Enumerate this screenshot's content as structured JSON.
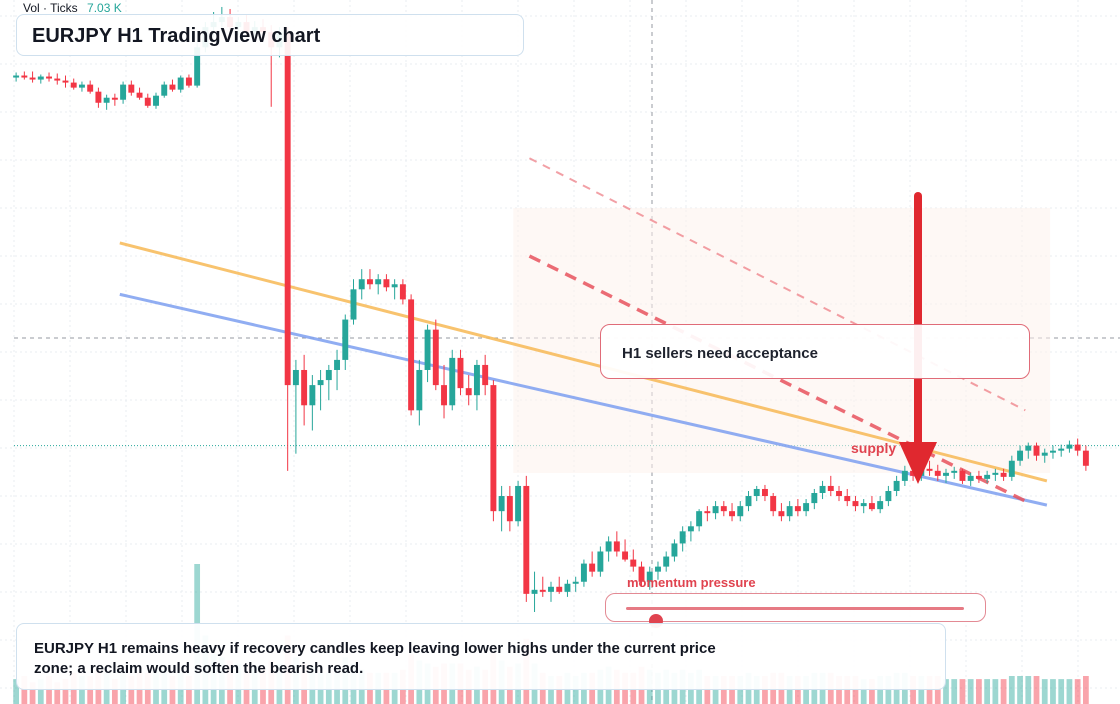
{
  "header": {
    "volume_label": "Vol · Ticks",
    "volume_value": "7.03 K",
    "title": "EURJPY H1 TradingView chart"
  },
  "annotations": {
    "callout": "H1 sellers need acceptance",
    "supply_label": "supply",
    "momentum_label": "momentum pressure",
    "momentum_level": 0.09,
    "note": "EURJPY H1 remains heavy if recovery candles keep leaving lower highs under the current price zone; a reclaim would soften the bearish read."
  },
  "colors": {
    "up": "#26a69a",
    "down": "#f23645",
    "trendline_orange": "#f7b955",
    "trendline_blue": "#7d9ff0",
    "channel_red": "#e8525d",
    "arrow": "#e0282f",
    "grid": "#e9ecf0"
  },
  "icons": [
    "down-arrow-icon"
  ],
  "chart_data": {
    "type": "candlestick",
    "symbol": "EURJPY",
    "timeframe": "H1",
    "title": "EURJPY H1 TradingView chart",
    "candles": [
      [
        160.0,
        160.05,
        159.96,
        160.02,
        0.8
      ],
      [
        160.02,
        160.06,
        159.98,
        160.0,
        0.9
      ],
      [
        160.0,
        160.06,
        159.95,
        159.98,
        0.7
      ],
      [
        159.98,
        160.03,
        159.94,
        160.01,
        0.8
      ],
      [
        160.01,
        160.05,
        159.96,
        159.99,
        0.9
      ],
      [
        159.99,
        160.04,
        159.93,
        159.97,
        0.7
      ],
      [
        159.97,
        160.02,
        159.9,
        159.95,
        0.8
      ],
      [
        159.95,
        159.99,
        159.88,
        159.9,
        1.0
      ],
      [
        159.9,
        159.96,
        159.86,
        159.93,
        0.9
      ],
      [
        159.93,
        159.97,
        159.84,
        159.86,
        0.9
      ],
      [
        159.86,
        159.9,
        159.7,
        159.75,
        1.1
      ],
      [
        159.75,
        159.83,
        159.68,
        159.8,
        1.0
      ],
      [
        159.8,
        159.84,
        159.72,
        159.78,
        0.8
      ],
      [
        159.78,
        159.96,
        159.74,
        159.93,
        1.1
      ],
      [
        159.93,
        159.97,
        159.82,
        159.85,
        0.9
      ],
      [
        159.85,
        159.9,
        159.78,
        159.8,
        1.0
      ],
      [
        159.8,
        159.84,
        159.7,
        159.72,
        1.0
      ],
      [
        159.72,
        159.85,
        159.69,
        159.82,
        1.1
      ],
      [
        159.82,
        159.96,
        159.8,
        159.93,
        1.1
      ],
      [
        159.93,
        159.98,
        159.86,
        159.88,
        0.9
      ],
      [
        159.88,
        160.02,
        159.85,
        160.0,
        1.0
      ],
      [
        160.0,
        160.03,
        159.9,
        159.92,
        0.9
      ],
      [
        159.92,
        160.35,
        159.9,
        160.3,
        4.5
      ],
      [
        160.3,
        160.55,
        160.25,
        160.5,
        2.2
      ],
      [
        160.5,
        160.65,
        160.4,
        160.55,
        1.6
      ],
      [
        160.55,
        160.7,
        160.45,
        160.6,
        1.5
      ],
      [
        160.6,
        160.68,
        160.46,
        160.5,
        1.4
      ],
      [
        160.5,
        160.6,
        160.42,
        160.55,
        1.3
      ],
      [
        160.55,
        160.62,
        160.4,
        160.45,
        1.3
      ],
      [
        160.45,
        160.56,
        160.38,
        160.5,
        1.2
      ],
      [
        160.5,
        160.58,
        160.4,
        160.45,
        1.2
      ],
      [
        160.45,
        160.52,
        159.71,
        160.3,
        1.4
      ],
      [
        160.3,
        160.5,
        160.2,
        160.45,
        1.3
      ],
      [
        160.45,
        160.5,
        156.1,
        156.95,
        2.2
      ],
      [
        156.95,
        157.2,
        156.27,
        157.1,
        1.5
      ],
      [
        157.1,
        157.25,
        156.55,
        156.75,
        1.3
      ],
      [
        156.75,
        157.05,
        156.5,
        156.95,
        1.2
      ],
      [
        156.95,
        157.1,
        156.7,
        157.0,
        1.0
      ],
      [
        157.0,
        157.15,
        156.8,
        157.1,
        1.0
      ],
      [
        157.1,
        157.3,
        156.9,
        157.2,
        1.1
      ],
      [
        157.2,
        157.65,
        157.1,
        157.6,
        1.5
      ],
      [
        157.6,
        158.0,
        157.55,
        157.9,
        1.3
      ],
      [
        157.9,
        158.1,
        157.8,
        158.0,
        1.1
      ],
      [
        158.0,
        158.1,
        157.9,
        157.95,
        1.0
      ],
      [
        157.95,
        158.05,
        157.85,
        158.0,
        1.0
      ],
      [
        158.0,
        158.05,
        157.88,
        157.92,
        1.0
      ],
      [
        157.92,
        158.0,
        157.8,
        157.95,
        1.0
      ],
      [
        157.95,
        158.0,
        157.75,
        157.8,
        1.1
      ],
      [
        157.8,
        157.85,
        156.65,
        156.7,
        1.6
      ],
      [
        156.7,
        157.2,
        156.55,
        157.1,
        1.4
      ],
      [
        157.1,
        157.55,
        156.98,
        157.5,
        1.3
      ],
      [
        157.5,
        157.6,
        156.9,
        156.95,
        1.2
      ],
      [
        156.95,
        157.15,
        156.62,
        156.75,
        1.3
      ],
      [
        156.75,
        157.3,
        156.7,
        157.22,
        1.3
      ],
      [
        157.22,
        157.3,
        156.85,
        156.92,
        1.3
      ],
      [
        156.92,
        157.05,
        156.75,
        156.85,
        1.1
      ],
      [
        156.85,
        157.2,
        156.7,
        157.15,
        1.2
      ],
      [
        157.15,
        157.25,
        156.85,
        156.95,
        1.1
      ],
      [
        156.95,
        157.0,
        155.6,
        155.7,
        1.7
      ],
      [
        155.7,
        155.95,
        155.5,
        155.85,
        1.4
      ],
      [
        155.85,
        155.95,
        155.5,
        155.6,
        1.2
      ],
      [
        155.6,
        156.0,
        155.55,
        155.95,
        1.3
      ],
      [
        155.95,
        156.05,
        154.8,
        154.88,
        2.1
      ],
      [
        154.88,
        155.1,
        154.7,
        154.92,
        1.3
      ],
      [
        154.92,
        155.05,
        154.85,
        154.9,
        1.0
      ],
      [
        154.9,
        155.0,
        154.8,
        154.95,
        0.9
      ],
      [
        154.95,
        155.05,
        154.88,
        154.9,
        0.9
      ],
      [
        154.9,
        155.02,
        154.85,
        154.98,
        1.0
      ],
      [
        154.98,
        155.05,
        154.9,
        155.0,
        0.9
      ],
      [
        155.0,
        155.22,
        154.95,
        155.18,
        1.0
      ],
      [
        155.18,
        155.3,
        155.05,
        155.1,
        1.0
      ],
      [
        155.1,
        155.35,
        155.05,
        155.3,
        1.1
      ],
      [
        155.3,
        155.45,
        155.2,
        155.4,
        1.2
      ],
      [
        155.4,
        155.5,
        155.25,
        155.3,
        1.1
      ],
      [
        155.3,
        155.42,
        155.2,
        155.22,
        1.0
      ],
      [
        155.22,
        155.32,
        155.1,
        155.15,
        1.0
      ],
      [
        155.15,
        155.2,
        154.95,
        155.0,
        1.2
      ],
      [
        155.0,
        155.15,
        154.92,
        155.1,
        1.1
      ],
      [
        155.1,
        155.2,
        155.02,
        155.15,
        1.0
      ],
      [
        155.15,
        155.3,
        155.1,
        155.25,
        1.1
      ],
      [
        155.25,
        155.42,
        155.2,
        155.38,
        1.0
      ],
      [
        155.38,
        155.55,
        155.3,
        155.5,
        1.1
      ],
      [
        155.5,
        155.6,
        155.4,
        155.55,
        1.0
      ],
      [
        155.55,
        155.72,
        155.5,
        155.7,
        1.1
      ],
      [
        155.7,
        155.75,
        155.6,
        155.68,
        0.9
      ],
      [
        155.68,
        155.8,
        155.62,
        155.75,
        0.9
      ],
      [
        155.75,
        155.8,
        155.65,
        155.7,
        0.9
      ],
      [
        155.7,
        155.78,
        155.6,
        155.65,
        0.9
      ],
      [
        155.65,
        155.8,
        155.6,
        155.75,
        0.9
      ],
      [
        155.75,
        155.9,
        155.7,
        155.85,
        1.0
      ],
      [
        155.85,
        155.95,
        155.8,
        155.92,
        0.9
      ],
      [
        155.92,
        155.96,
        155.8,
        155.85,
        0.9
      ],
      [
        155.85,
        155.88,
        155.65,
        155.7,
        1.0
      ],
      [
        155.7,
        155.78,
        155.6,
        155.65,
        1.0
      ],
      [
        155.65,
        155.8,
        155.6,
        155.75,
        0.9
      ],
      [
        155.75,
        155.82,
        155.65,
        155.7,
        0.9
      ],
      [
        155.7,
        155.82,
        155.65,
        155.78,
        0.9
      ],
      [
        155.78,
        155.92,
        155.72,
        155.88,
        1.0
      ],
      [
        155.88,
        156.0,
        155.82,
        155.95,
        1.0
      ],
      [
        155.95,
        156.05,
        155.85,
        155.9,
        1.0
      ],
      [
        155.9,
        155.95,
        155.8,
        155.85,
        0.9
      ],
      [
        155.85,
        155.92,
        155.75,
        155.8,
        0.9
      ],
      [
        155.8,
        155.85,
        155.7,
        155.75,
        0.9
      ],
      [
        155.75,
        155.82,
        155.68,
        155.78,
        0.8
      ],
      [
        155.78,
        155.85,
        155.7,
        155.72,
        0.8
      ],
      [
        155.72,
        155.85,
        155.68,
        155.8,
        0.9
      ],
      [
        155.8,
        155.95,
        155.75,
        155.9,
        0.9
      ],
      [
        155.9,
        156.05,
        155.85,
        156.0,
        1.0
      ],
      [
        156.0,
        156.15,
        155.95,
        156.1,
        1.0
      ],
      [
        156.1,
        156.18,
        156.0,
        156.05,
        0.9
      ],
      [
        156.05,
        156.15,
        156.0,
        156.12,
        0.9
      ],
      [
        156.12,
        156.2,
        156.05,
        156.1,
        0.9
      ],
      [
        156.1,
        156.16,
        156.0,
        156.05,
        0.9
      ],
      [
        156.05,
        156.12,
        155.98,
        156.08,
        0.8
      ],
      [
        156.08,
        156.14,
        156.02,
        156.1,
        0.8
      ],
      [
        156.1,
        156.12,
        155.97,
        156.0,
        0.8
      ],
      [
        156.0,
        156.08,
        155.95,
        156.05,
        0.8
      ],
      [
        156.05,
        156.1,
        155.98,
        156.02,
        0.8
      ],
      [
        156.02,
        156.1,
        155.98,
        156.06,
        0.8
      ],
      [
        156.06,
        156.12,
        156.0,
        156.08,
        0.8
      ],
      [
        156.08,
        156.12,
        156.0,
        156.04,
        0.8
      ],
      [
        156.04,
        156.25,
        156.0,
        156.2,
        0.9
      ],
      [
        156.2,
        156.35,
        156.15,
        156.3,
        0.9
      ],
      [
        156.3,
        156.38,
        156.22,
        156.35,
        0.9
      ],
      [
        156.35,
        156.38,
        156.2,
        156.25,
        0.9
      ],
      [
        156.25,
        156.32,
        156.18,
        156.28,
        0.8
      ],
      [
        156.28,
        156.35,
        156.22,
        156.3,
        0.8
      ],
      [
        156.3,
        156.36,
        156.24,
        156.32,
        0.8
      ],
      [
        156.32,
        156.4,
        156.28,
        156.36,
        0.8
      ],
      [
        156.36,
        156.42,
        156.25,
        156.3,
        0.8
      ],
      [
        156.3,
        156.35,
        156.1,
        156.15,
        0.9
      ]
    ],
    "lines": [
      {
        "type": "trendline",
        "color": "#f7b955",
        "from": [
          0.1,
          158.36
        ],
        "to": [
          0.96,
          156.0
        ]
      },
      {
        "type": "trendline",
        "color": "#7d9ff0",
        "from": [
          0.1,
          157.85
        ],
        "to": [
          0.96,
          155.76
        ]
      },
      {
        "type": "channel",
        "color": "#e8525d",
        "from": [
          0.48,
          158.23
        ],
        "to": [
          0.94,
          155.8
        ]
      },
      {
        "type": "channel",
        "color": "#e8525d",
        "from": [
          0.48,
          159.2
        ],
        "to": [
          0.94,
          156.7
        ]
      }
    ],
    "current_price_line": 156.35,
    "grid": true
  }
}
